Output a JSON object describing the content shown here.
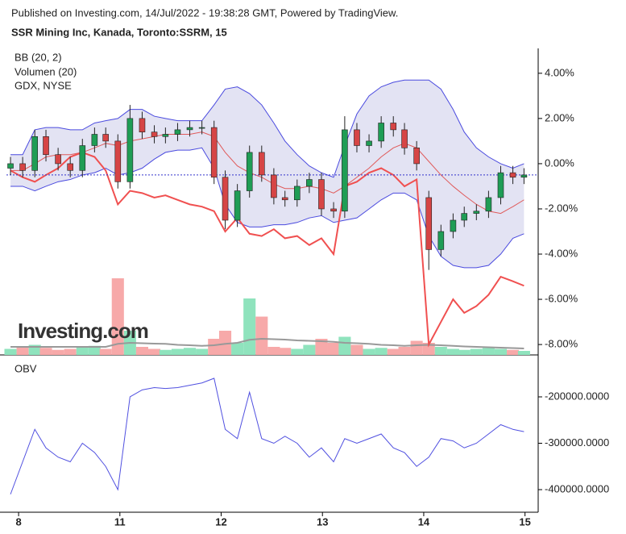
{
  "header": "Published on Investing.com, 14/Jul/2022 - 19:38:28 GMT, Powered by TradingView.",
  "watermark": "Investing.com",
  "chart_data": [
    {
      "type": "candlestick",
      "title": "SSR Mining Inc, Kanada, Toronto:SSRM, 15",
      "x": [
        -0.08,
        0.04,
        0.16,
        0.27,
        0.39,
        0.51,
        0.63,
        0.75,
        0.86,
        0.98,
        1.1,
        1.22,
        1.34,
        1.45,
        1.57,
        1.69,
        1.81,
        1.93,
        2.04,
        2.16,
        2.28,
        2.4,
        2.52,
        2.63,
        2.75,
        2.87,
        2.99,
        3.11,
        3.22,
        3.34,
        3.46,
        3.58,
        3.7,
        3.81,
        3.93,
        4.05,
        4.17,
        4.29,
        4.4,
        4.52,
        4.64,
        4.76,
        4.88,
        4.99
      ],
      "open": [
        -0.2,
        0.0,
        -0.3,
        1.2,
        0.4,
        0.0,
        -0.3,
        0.8,
        1.3,
        1.0,
        -0.8,
        2.0,
        1.4,
        1.2,
        1.3,
        1.5,
        1.6,
        1.6,
        -0.6,
        -2.5,
        -1.2,
        0.5,
        -0.5,
        -1.5,
        -1.6,
        -1.0,
        -0.7,
        -2.0,
        -2.1,
        1.5,
        0.8,
        1.0,
        1.8,
        1.5,
        0.7,
        -1.5,
        -3.8,
        -3.0,
        -2.5,
        -2.2,
        -2.1,
        -1.5,
        -0.4,
        -0.6
      ],
      "high": [
        0.3,
        0.3,
        1.5,
        1.5,
        0.7,
        0.3,
        1.1,
        1.6,
        1.6,
        1.3,
        2.6,
        2.3,
        1.7,
        1.6,
        1.8,
        1.9,
        1.9,
        1.9,
        -0.3,
        -0.9,
        0.8,
        0.8,
        -0.2,
        -1.2,
        -0.7,
        -0.4,
        -0.4,
        -1.7,
        2.1,
        1.8,
        1.3,
        2.1,
        2.1,
        1.8,
        1.0,
        -1.2,
        -2.7,
        -2.2,
        -1.9,
        -1.8,
        -1.2,
        -0.1,
        -0.1,
        -0.2
      ],
      "low": [
        -0.5,
        -0.6,
        -0.6,
        0.1,
        -0.3,
        -0.6,
        -0.6,
        0.5,
        0.7,
        -1.1,
        -1.1,
        1.1,
        0.9,
        0.9,
        1.0,
        1.2,
        1.3,
        -0.9,
        -2.9,
        -2.8,
        -1.5,
        -0.8,
        -1.8,
        -1.9,
        -1.9,
        -1.3,
        -2.3,
        -2.4,
        -2.4,
        0.5,
        0.5,
        0.7,
        1.2,
        0.4,
        -0.3,
        -4.7,
        -4.1,
        -3.3,
        -2.8,
        -2.5,
        -2.4,
        -1.8,
        -0.9,
        -0.9
      ],
      "close": [
        0.0,
        -0.3,
        1.2,
        0.4,
        0.0,
        -0.3,
        0.8,
        1.3,
        1.0,
        -0.8,
        2.0,
        1.4,
        1.2,
        1.3,
        1.5,
        1.6,
        1.6,
        -0.6,
        -2.5,
        -1.2,
        0.5,
        -0.5,
        -1.5,
        -1.6,
        -1.0,
        -0.7,
        -2.0,
        -2.1,
        1.5,
        0.8,
        1.0,
        1.8,
        1.5,
        0.7,
        0.0,
        -3.8,
        -3.0,
        -2.5,
        -2.2,
        -2.1,
        -1.5,
        -0.4,
        -0.6,
        -0.5
      ],
      "up_color": "#1f9d55",
      "down_color": "#d64545",
      "bands": {
        "name": "BB (20, 2)",
        "color": "#4a4adf",
        "fill": "#e3e3f3",
        "middle_color": "#e05a5a",
        "upper": [
          0.4,
          0.4,
          1.5,
          1.6,
          1.6,
          1.5,
          1.5,
          1.8,
          1.9,
          2.0,
          2.4,
          2.4,
          2.1,
          2.0,
          1.9,
          1.9,
          1.9,
          2.6,
          3.3,
          3.4,
          3.1,
          2.6,
          1.8,
          1.0,
          0.4,
          -0.1,
          -0.4,
          -0.6,
          0.8,
          2.2,
          3.0,
          3.4,
          3.6,
          3.7,
          3.7,
          3.7,
          3.3,
          2.4,
          1.4,
          0.7,
          0.3,
          0.0,
          -0.2,
          0.0
        ],
        "middle": [
          -0.3,
          -0.3,
          0.0,
          0.3,
          0.4,
          0.4,
          0.5,
          0.7,
          0.9,
          0.8,
          1.0,
          1.1,
          1.2,
          1.3,
          1.3,
          1.3,
          1.4,
          1.2,
          0.5,
          -0.1,
          -0.4,
          -0.6,
          -0.9,
          -1.1,
          -1.1,
          -1.0,
          -1.1,
          -1.3,
          -1.0,
          -0.6,
          -0.2,
          0.3,
          0.7,
          0.9,
          0.7,
          0.1,
          -0.5,
          -1.0,
          -1.4,
          -1.8,
          -2.1,
          -2.2,
          -1.9,
          -1.6
        ],
        "lower": [
          -1.0,
          -1.0,
          -1.2,
          -1.0,
          -0.8,
          -0.7,
          -0.5,
          -0.4,
          -0.2,
          -0.5,
          -0.4,
          -0.2,
          0.2,
          0.5,
          0.6,
          0.6,
          0.7,
          -0.2,
          -1.8,
          -2.6,
          -2.8,
          -2.8,
          -2.7,
          -2.7,
          -2.6,
          -2.4,
          -2.3,
          -2.6,
          -2.5,
          -2.4,
          -2.0,
          -1.6,
          -1.3,
          -1.3,
          -1.6,
          -3.2,
          -4.1,
          -4.5,
          -4.6,
          -4.6,
          -4.5,
          -4.0,
          -3.3,
          -3.1
        ]
      },
      "volume": {
        "name": "Volumen (20)",
        "up_color": "#8fe3bd",
        "down_color": "#f7a9a9",
        "ma_color": "#999999",
        "vlim": [
          0,
          400000
        ],
        "values": [
          30000,
          40000,
          50000,
          35000,
          25000,
          30000,
          40000,
          45000,
          30000,
          380000,
          120000,
          40000,
          30000,
          25000,
          30000,
          35000,
          30000,
          80000,
          120000,
          60000,
          280000,
          190000,
          40000,
          35000,
          30000,
          50000,
          80000,
          60000,
          90000,
          50000,
          30000,
          35000,
          30000,
          40000,
          70000,
          60000,
          40000,
          30000,
          25000,
          30000,
          35000,
          30000,
          25000,
          20000
        ],
        "ma": [
          40000,
          40000,
          40000,
          40000,
          40000,
          40000,
          40000,
          40000,
          40000,
          55000,
          60000,
          58000,
          56000,
          55000,
          50000,
          48000,
          45000,
          48000,
          55000,
          60000,
          75000,
          80000,
          78000,
          76000,
          72000,
          70000,
          68000,
          65000,
          60000,
          58000,
          55000,
          50000,
          48000,
          45000,
          48000,
          50000,
          48000,
          45000,
          42000,
          40000,
          38000,
          36000,
          34000,
          32000
        ]
      },
      "series": [
        {
          "name": "GDX, NYSE",
          "color": "#f05050",
          "values": [
            -0.3,
            -0.6,
            -0.8,
            -0.5,
            -0.2,
            0.3,
            0.5,
            0.3,
            -0.3,
            -1.8,
            -1.2,
            -1.3,
            -1.5,
            -1.4,
            -1.6,
            -1.8,
            -1.9,
            -2.1,
            -3.0,
            -2.4,
            -3.1,
            -3.2,
            -2.9,
            -3.3,
            -3.2,
            -3.6,
            -3.3,
            -4.0,
            -1.0,
            -0.8,
            -0.4,
            -0.2,
            -0.5,
            -1.0,
            -0.7,
            -8.0,
            -7.0,
            -6.0,
            -6.6,
            -6.3,
            -5.8,
            -5.0,
            -5.2,
            -5.4
          ]
        }
      ],
      "last_line_color": "#3333cc",
      "xlim": [
        -0.12,
        5.13
      ],
      "xticks": [
        {
          "value": 0,
          "label": "8"
        },
        {
          "value": 1,
          "label": "11"
        },
        {
          "value": 2,
          "label": "12"
        },
        {
          "value": 3,
          "label": "13"
        },
        {
          "value": 4,
          "label": "14"
        },
        {
          "value": 5,
          "label": "15"
        }
      ],
      "ylim": [
        -8.46,
        5.1
      ],
      "yticks": [
        {
          "value": 4,
          "label": "4.00%"
        },
        {
          "value": 2,
          "label": "2.00%"
        },
        {
          "value": 0,
          "label": "0.00%"
        },
        {
          "value": -2,
          "label": "-2.00%"
        },
        {
          "value": -4,
          "label": "-4.00%"
        },
        {
          "value": -6,
          "label": "-6.00%"
        },
        {
          "value": -8,
          "label": "-8.00%"
        }
      ]
    },
    {
      "type": "line",
      "title": "OBV",
      "x": [
        -0.08,
        0.04,
        0.16,
        0.27,
        0.39,
        0.51,
        0.63,
        0.75,
        0.86,
        0.98,
        1.1,
        1.22,
        1.34,
        1.45,
        1.57,
        1.69,
        1.81,
        1.93,
        2.04,
        2.16,
        2.28,
        2.4,
        2.52,
        2.63,
        2.75,
        2.87,
        2.99,
        3.11,
        3.22,
        3.34,
        3.46,
        3.58,
        3.7,
        3.81,
        3.93,
        4.05,
        4.17,
        4.29,
        4.4,
        4.52,
        4.64,
        4.76,
        4.88,
        4.99
      ],
      "series": [
        {
          "name": "OBV",
          "color": "#5050e0",
          "values": [
            -410000,
            -340000,
            -270000,
            -310000,
            -330000,
            -340000,
            -300000,
            -320000,
            -350000,
            -400000,
            -200000,
            -185000,
            -180000,
            -182000,
            -180000,
            -175000,
            -170000,
            -160000,
            -270000,
            -290000,
            -190000,
            -290000,
            -300000,
            -285000,
            -300000,
            -330000,
            -310000,
            -340000,
            -290000,
            -300000,
            -290000,
            -280000,
            -310000,
            -320000,
            -350000,
            -330000,
            -290000,
            -295000,
            -310000,
            -300000,
            -280000,
            -260000,
            -270000,
            -275000
          ]
        }
      ],
      "xlim": [
        -0.12,
        5.13
      ],
      "ylim": [
        -448700,
        -109600
      ],
      "yticks": [
        {
          "value": -200000,
          "label": "-200000.0000"
        },
        {
          "value": -300000,
          "label": "-300000.0000"
        },
        {
          "value": -400000,
          "label": "-400000.0000"
        }
      ]
    }
  ]
}
